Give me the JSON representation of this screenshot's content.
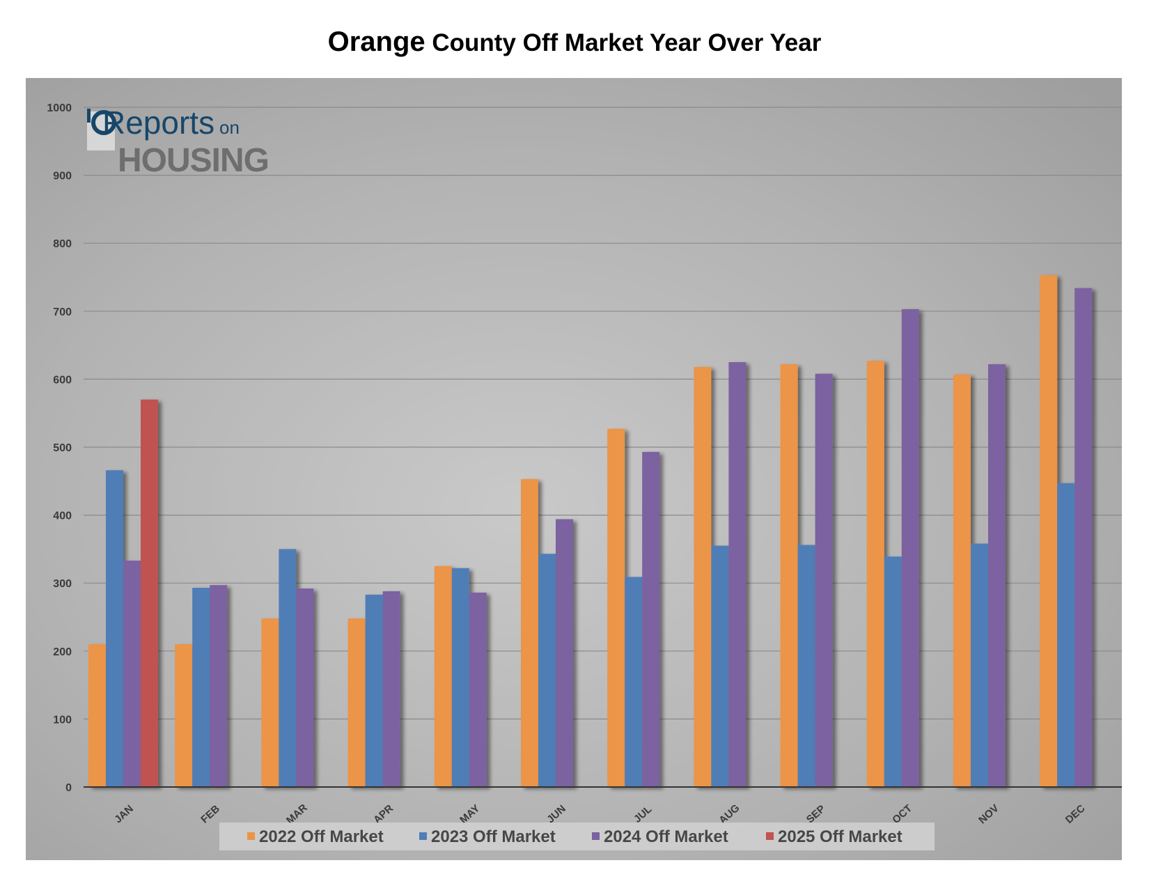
{
  "title": {
    "part1": "Orange",
    "part2": " County Off Market Year Over Year"
  },
  "logo": {
    "line1": "Reports",
    "line1b": "on",
    "line2": "HOUSING"
  },
  "colors": {
    "s2022": "#EC9446",
    "s2023": "#4F7DB6",
    "s2024": "#7B62A0",
    "s2025": "#C05250",
    "logo_dark": "#17466A",
    "logo_grey": "#6E6E6E"
  },
  "chart_data": {
    "type": "bar",
    "title": "Orange County Off Market Year Over Year",
    "xlabel": "",
    "ylabel": "",
    "ylim": [
      0,
      1000
    ],
    "yticks": [
      0,
      100,
      200,
      300,
      400,
      500,
      600,
      700,
      800,
      900,
      1000
    ],
    "grid": true,
    "legend_position": "bottom",
    "categories": [
      "JAN",
      "FEB",
      "MAR",
      "APR",
      "MAY",
      "JUN",
      "JUL",
      "AUG",
      "SEP",
      "OCT",
      "NOV",
      "DEC"
    ],
    "series": [
      {
        "name": "2022 Off Market",
        "color": "#EC9446",
        "values": [
          210,
          210,
          248,
          248,
          325,
          453,
          527,
          618,
          622,
          627,
          607,
          753
        ]
      },
      {
        "name": "2023 Off Market",
        "color": "#4F7DB6",
        "values": [
          466,
          293,
          350,
          283,
          322,
          343,
          309,
          355,
          356,
          339,
          358,
          447
        ]
      },
      {
        "name": "2024 Off Market",
        "color": "#7B62A0",
        "values": [
          333,
          297,
          292,
          288,
          286,
          394,
          493,
          625,
          608,
          703,
          622,
          734
        ]
      },
      {
        "name": "2025 Off Market",
        "color": "#C05250",
        "values": [
          570,
          null,
          null,
          null,
          null,
          null,
          null,
          null,
          null,
          null,
          null,
          null
        ]
      }
    ]
  }
}
